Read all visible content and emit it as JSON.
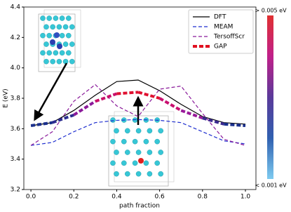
{
  "chart_data": {
    "type": "line",
    "x_label": "path fraction",
    "y_label": "E (eV)",
    "x": [
      0,
      0.1,
      0.2,
      0.3,
      0.4,
      0.5,
      0.6,
      0.7,
      0.8,
      0.9,
      1.0
    ],
    "series": [
      {
        "name": "DFT",
        "color": "#000000",
        "dash": "solid",
        "values": [
          3.62,
          3.64,
          3.72,
          3.82,
          3.91,
          3.92,
          3.85,
          3.76,
          3.68,
          3.64,
          3.63
        ]
      },
      {
        "name": "MEAM",
        "color": "#1f2fd0",
        "dash": "dashed",
        "values": [
          3.49,
          3.51,
          3.58,
          3.64,
          3.655,
          3.66,
          3.655,
          3.64,
          3.58,
          3.52,
          3.5
        ]
      },
      {
        "name": "TersoffScr",
        "color": "#8a1a9a",
        "dash": "dashed",
        "values": [
          3.49,
          3.58,
          3.78,
          3.89,
          3.75,
          3.68,
          3.86,
          3.88,
          3.7,
          3.53,
          3.49
        ]
      },
      {
        "name": "GAP",
        "color": "#e01020",
        "dash": "thick-dashed",
        "values": [
          3.62,
          3.64,
          3.69,
          3.78,
          3.83,
          3.84,
          3.8,
          3.72,
          3.67,
          3.63,
          3.62
        ],
        "segment_colors": [
          "#1a2f8c",
          "#2c2c90",
          "#8b1a9a",
          "#c8106a",
          "#e01030",
          "#e01030",
          "#c81070",
          "#9a1a9a",
          "#3a2a8f",
          "#1a2f8c"
        ]
      }
    ],
    "xlim": [
      -0.033,
      1.049
    ],
    "ylim": [
      3.2,
      4.4
    ],
    "xticks": [
      {
        "value": 0,
        "label": "0.0"
      },
      0.2,
      0.4,
      0.6,
      0.8,
      {
        "value": 1.0,
        "label": "1.0"
      }
    ],
    "yticks": [
      3.2,
      3.4,
      3.6,
      3.8,
      {
        "value": 4.0,
        "label": "4.0"
      },
      4.2,
      4.4
    ],
    "legend": "upper right",
    "colorbar": {
      "colors": [
        "#e03030",
        "#c0208a",
        "#5a3a9a",
        "#3060b0",
        "#7ecbf0"
      ],
      "max_label": "> 0.005 eV",
      "min_label": "< 0.001 eV"
    }
  }
}
